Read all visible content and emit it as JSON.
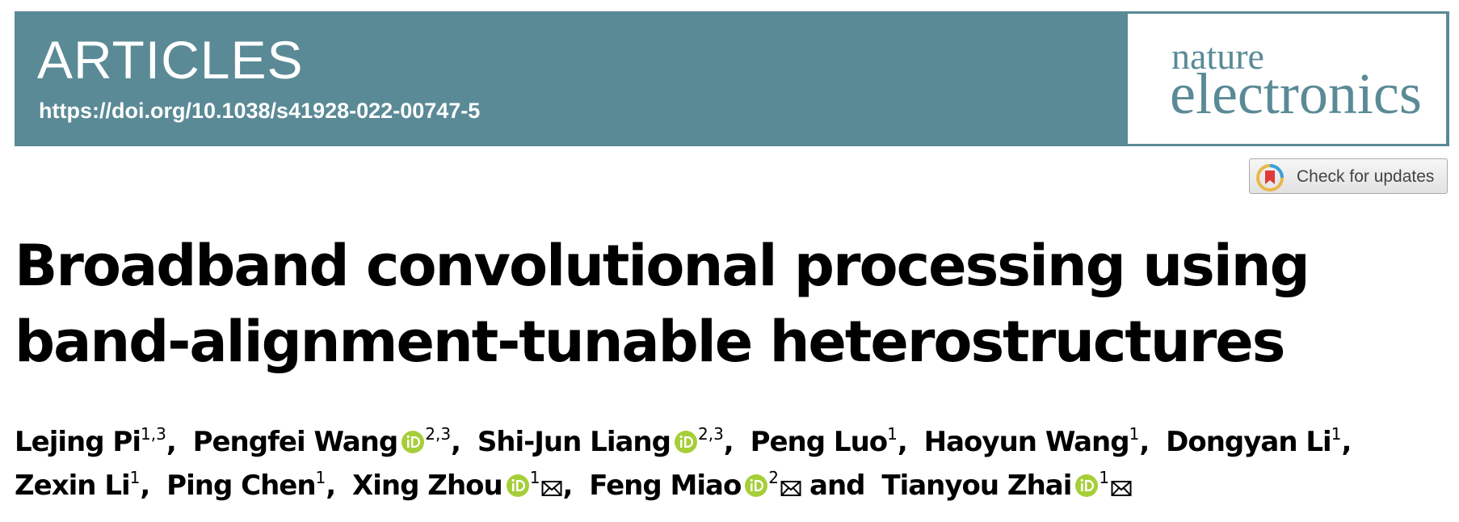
{
  "header": {
    "section": "ARTICLES",
    "doi": "https://doi.org/10.1038/s41928-022-00747-5",
    "journal": [
      "nature",
      "electronics"
    ]
  },
  "update_button": "Check for updates",
  "title": "Broadband convolutional processing using band-alignment-tunable heterostructures",
  "authors": [
    {
      "name": "Lejing Pi",
      "affiliations": "1,3",
      "orcid": false,
      "corresponding": false,
      "after": ","
    },
    {
      "name": "Pengfei Wang",
      "affiliations": "2,3",
      "orcid": true,
      "corresponding": false,
      "after": ","
    },
    {
      "name": "Shi-Jun Liang",
      "affiliations": "2,3",
      "orcid": true,
      "corresponding": false,
      "after": ","
    },
    {
      "name": "Peng Luo",
      "affiliations": "1",
      "orcid": false,
      "corresponding": false,
      "after": ","
    },
    {
      "name": "Haoyun Wang",
      "affiliations": "1",
      "orcid": false,
      "corresponding": false,
      "after": ","
    },
    {
      "name": "Dongyan Li",
      "affiliations": "1",
      "orcid": false,
      "corresponding": false,
      "after": ","
    },
    {
      "name": "Zexin Li",
      "affiliations": "1",
      "orcid": false,
      "corresponding": false,
      "after": ","
    },
    {
      "name": "Ping Chen",
      "affiliations": "1",
      "orcid": false,
      "corresponding": false,
      "after": ","
    },
    {
      "name": "Xing Zhou",
      "affiliations": "1",
      "orcid": true,
      "corresponding": true,
      "after": ","
    },
    {
      "name": "Feng Miao",
      "affiliations": "2",
      "orcid": true,
      "corresponding": true,
      "after": "and"
    },
    {
      "name": "Tianyou Zhai",
      "affiliations": "1",
      "orcid": true,
      "corresponding": true
    }
  ]
}
